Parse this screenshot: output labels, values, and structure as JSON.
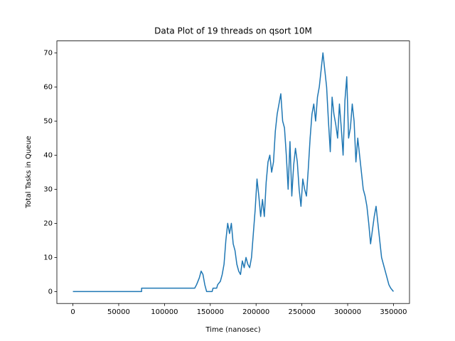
{
  "chart_data": {
    "type": "line",
    "title": "Data Plot of 19 threads on qsort 10M",
    "x_label": "Time (nanosec)",
    "y_label": "Total Tasks in Queue",
    "xlim": [
      -17500,
      367500
    ],
    "ylim": [
      -3.5,
      73.5
    ],
    "xticks": [
      0,
      50000,
      100000,
      150000,
      200000,
      250000,
      300000,
      350000
    ],
    "yticks": [
      0,
      10,
      20,
      30,
      40,
      50,
      60,
      70
    ],
    "series": [
      {
        "color": "#1f77b4",
        "x": [
          0,
          75000,
          75000,
          133000,
          135000,
          138000,
          140000,
          142000,
          144000,
          146000,
          152000,
          153000,
          157000,
          158000,
          161000,
          163000,
          165000,
          167000,
          169000,
          171000,
          173000,
          175000,
          177000,
          179000,
          181000,
          183000,
          185000,
          187000,
          189000,
          191000,
          193000,
          195000,
          197000,
          199000,
          201000,
          203000,
          205000,
          207000,
          209000,
          211000,
          213000,
          215000,
          217000,
          219000,
          221000,
          223000,
          225000,
          227000,
          229000,
          231000,
          233000,
          235000,
          237000,
          239000,
          241000,
          243000,
          245000,
          247000,
          249000,
          251000,
          253000,
          255000,
          257000,
          259000,
          261000,
          263000,
          265000,
          267000,
          269000,
          271000,
          273000,
          275000,
          277000,
          279000,
          281000,
          283000,
          285000,
          287000,
          289000,
          291000,
          293000,
          295000,
          297000,
          299000,
          301000,
          303000,
          305000,
          307000,
          309000,
          311000,
          313000,
          315000,
          317000,
          319000,
          321000,
          323000,
          325000,
          327000,
          329000,
          331000,
          333000,
          335000,
          337000,
          339000,
          341000,
          343000,
          345000,
          347000,
          350000
        ],
        "values": [
          0,
          0,
          1,
          1,
          2,
          4,
          6,
          5,
          2,
          0,
          0,
          1,
          1,
          2,
          3,
          5,
          8,
          15,
          20,
          17,
          20,
          14,
          12,
          8,
          6,
          5,
          9,
          7,
          10,
          8,
          7,
          10,
          17,
          24,
          33,
          28,
          22,
          27,
          22,
          32,
          38,
          40,
          35,
          38,
          47,
          52,
          55,
          58,
          50,
          48,
          40,
          30,
          44,
          28,
          37,
          42,
          38,
          30,
          25,
          33,
          30,
          28,
          36,
          45,
          52,
          55,
          50,
          57,
          60,
          65,
          70,
          65,
          60,
          50,
          41,
          57,
          52,
          49,
          45,
          55,
          48,
          40,
          56,
          63,
          45,
          48,
          55,
          50,
          38,
          45,
          40,
          35,
          30,
          28,
          25,
          20,
          14,
          18,
          22,
          25,
          20,
          15,
          10,
          8,
          6,
          4,
          2,
          1,
          0
        ]
      }
    ]
  }
}
